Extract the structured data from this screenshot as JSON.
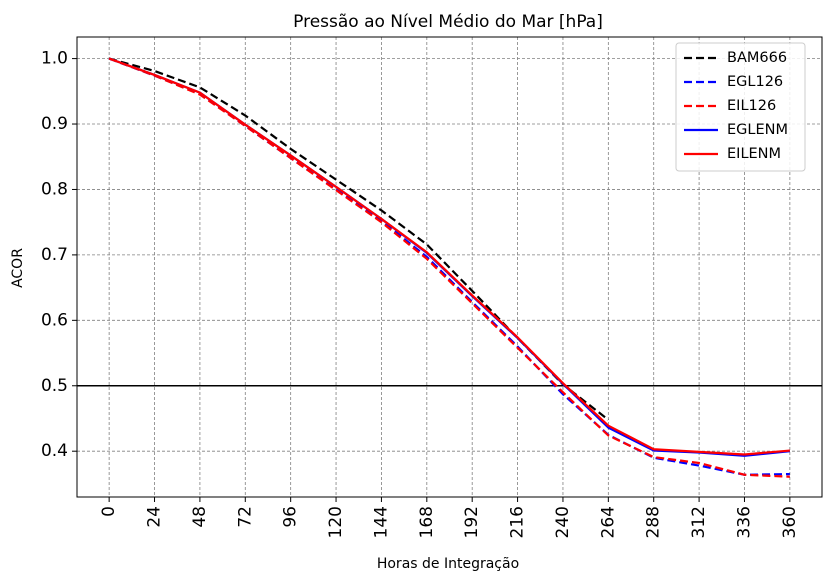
{
  "chart_data": {
    "type": "line",
    "title": "Pressão ao Nível Médio do Mar [hPa]",
    "xlabel": "Horas de Integração",
    "ylabel": "ACOR",
    "x": [
      0,
      24,
      48,
      72,
      96,
      120,
      144,
      168,
      192,
      216,
      240,
      264,
      288,
      312,
      336,
      360
    ],
    "xticks": [
      "0",
      "24",
      "48",
      "72",
      "96",
      "120",
      "144",
      "168",
      "192",
      "216",
      "240",
      "264",
      "288",
      "312",
      "336",
      "360"
    ],
    "yticks": [
      "0.4",
      "0.5",
      "0.6",
      "0.7",
      "0.8",
      "0.9",
      "1.0"
    ],
    "ylim": [
      0.33,
      1.033
    ],
    "xlim": [
      -17,
      377
    ],
    "grid": true,
    "reference_line": 0.5,
    "legend_position": "top-right",
    "series": [
      {
        "name": "BAM666",
        "color": "#000000",
        "style": "dashed",
        "values": [
          1.0,
          0.981,
          0.956,
          0.913,
          0.862,
          0.815,
          0.768,
          0.716,
          0.645,
          0.573,
          0.502,
          0.448,
          null,
          null,
          null,
          null
        ]
      },
      {
        "name": "EGL126",
        "color": "#0000ff",
        "style": "dashed",
        "values": [
          1.0,
          0.974,
          0.947,
          0.897,
          0.848,
          0.8,
          0.752,
          0.697,
          0.628,
          0.56,
          0.487,
          0.425,
          0.39,
          0.378,
          0.364,
          0.365
        ]
      },
      {
        "name": "EIL126",
        "color": "#ff0000",
        "style": "dashed",
        "values": [
          1.0,
          0.974,
          0.945,
          0.897,
          0.848,
          0.799,
          0.75,
          0.694,
          0.626,
          0.558,
          0.49,
          0.424,
          0.391,
          0.382,
          0.364,
          0.361
        ]
      },
      {
        "name": "EGLENM",
        "color": "#0000ff",
        "style": "solid",
        "values": [
          1.0,
          0.975,
          0.948,
          0.899,
          0.852,
          0.804,
          0.755,
          0.703,
          0.637,
          0.573,
          0.503,
          0.436,
          0.401,
          0.398,
          0.393,
          0.4
        ]
      },
      {
        "name": "EILENM",
        "color": "#ff0000",
        "style": "solid",
        "values": [
          1.0,
          0.975,
          0.948,
          0.899,
          0.852,
          0.804,
          0.755,
          0.704,
          0.638,
          0.574,
          0.504,
          0.439,
          0.403,
          0.399,
          0.395,
          0.401
        ]
      }
    ]
  }
}
